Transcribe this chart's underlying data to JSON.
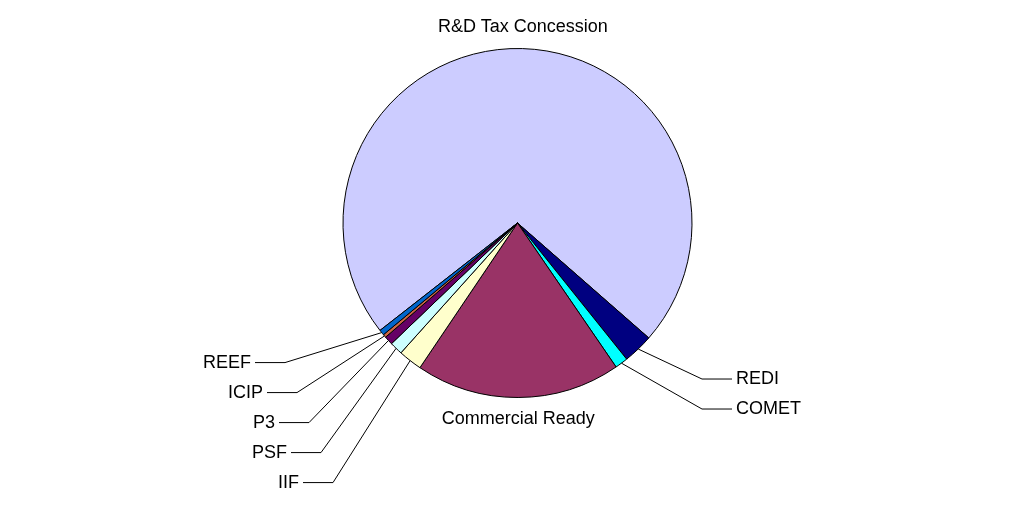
{
  "chart_data": {
    "type": "pie",
    "categories": [
      "R&D Tax Concession",
      "REDI",
      "COMET",
      "Commercial Ready",
      "IIF",
      "PSF",
      "P3",
      "ICIP",
      "REEF"
    ],
    "values": [
      72,
      2.8,
      1.2,
      19,
      2.2,
      1.2,
      0.8,
      0.3,
      0.5
    ],
    "colors": [
      "#ccccff",
      "#000080",
      "#00ffff",
      "#993366",
      "#ffffcc",
      "#ccffff",
      "#660066",
      "#cc6644",
      "#0066cc"
    ],
    "legend": false
  }
}
